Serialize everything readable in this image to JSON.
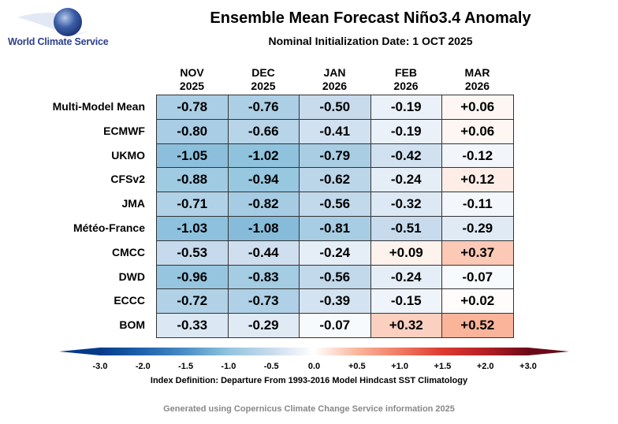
{
  "logo": {
    "text": "World Climate Service"
  },
  "chart_data": {
    "type": "heatmap",
    "title": "Ensemble Mean Forecast Niño3.4 Anomaly",
    "subtitle": "Nominal Initialization Date: 1 OCT 2025",
    "columns": [
      {
        "month": "NOV",
        "year": "2025"
      },
      {
        "month": "DEC",
        "year": "2025"
      },
      {
        "month": "JAN",
        "year": "2026"
      },
      {
        "month": "FEB",
        "year": "2026"
      },
      {
        "month": "MAR",
        "year": "2026"
      }
    ],
    "rows": [
      {
        "model": "Multi-Model Mean",
        "values": [
          "-0.78",
          "-0.76",
          "-0.50",
          "-0.19",
          "+0.06"
        ]
      },
      {
        "model": "ECMWF",
        "values": [
          "-0.80",
          "-0.66",
          "-0.41",
          "-0.19",
          "+0.06"
        ]
      },
      {
        "model": "UKMO",
        "values": [
          "-1.05",
          "-1.02",
          "-0.79",
          "-0.42",
          "-0.12"
        ]
      },
      {
        "model": "CFSv2",
        "values": [
          "-0.88",
          "-0.94",
          "-0.62",
          "-0.24",
          "+0.12"
        ]
      },
      {
        "model": "JMA",
        "values": [
          "-0.71",
          "-0.82",
          "-0.56",
          "-0.32",
          "-0.11"
        ]
      },
      {
        "model": "Météo-France",
        "values": [
          "-1.03",
          "-1.08",
          "-0.81",
          "-0.51",
          "-0.29"
        ]
      },
      {
        "model": "CMCC",
        "values": [
          "-0.53",
          "-0.44",
          "-0.24",
          "+0.09",
          "+0.37"
        ]
      },
      {
        "model": "DWD",
        "values": [
          "-0.96",
          "-0.83",
          "-0.56",
          "-0.24",
          "-0.07"
        ]
      },
      {
        "model": "ECCC",
        "values": [
          "-0.72",
          "-0.73",
          "-0.39",
          "-0.15",
          "+0.02"
        ]
      },
      {
        "model": "BOM",
        "values": [
          "-0.33",
          "-0.29",
          "-0.07",
          "+0.32",
          "+0.52"
        ]
      }
    ],
    "colorbar": {
      "ticks": [
        "-3.0",
        "-2.0",
        "-1.5",
        "-1.0",
        "-0.5",
        "0.0",
        "+0.5",
        "+1.0",
        "+1.5",
        "+2.0",
        "+3.0"
      ],
      "colors": [
        "#053a8a",
        "#1f63ad",
        "#4a8fc6",
        "#92c4de",
        "#c8dbed",
        "#ffffff",
        "#f9b69c",
        "#f07a62",
        "#dc3a30",
        "#b51f26",
        "#6b0a17"
      ],
      "extend": "both",
      "label": "Index Definition: Departure From 1993-2016 Model Hindcast SST Climatology"
    }
  },
  "footer": "Generated using Copernicus Climate Change Service information 2025"
}
